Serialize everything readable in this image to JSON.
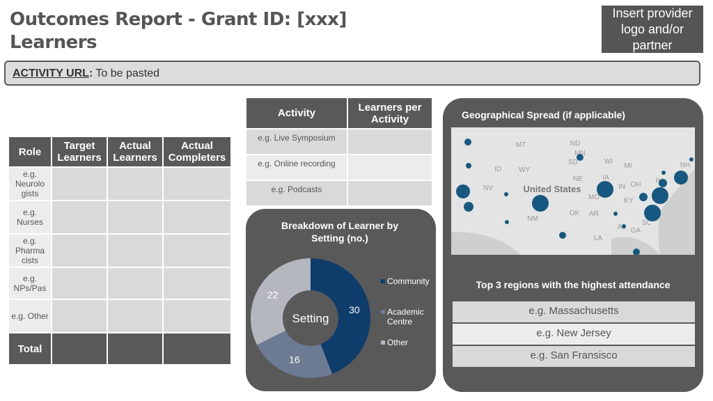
{
  "header": {
    "title_line1": "Outcomes Report - Grant ID: [xxx]",
    "title_line2": "Learners",
    "logo_placeholder": "Insert provider logo and/or partner"
  },
  "activity_url": {
    "label": "ACTIVITY URL",
    "colon": ":",
    "value": "To be pasted"
  },
  "role_table": {
    "headers": [
      "Role",
      "Target Learners",
      "Actual Learners",
      "Actual Completers"
    ],
    "rows": [
      [
        "e.g. Neurolo gists",
        "",
        "",
        ""
      ],
      [
        "e.g. Nurses",
        "",
        "",
        ""
      ],
      [
        "e.g. Pharma cists",
        "",
        "",
        ""
      ],
      [
        "e.g. NPs/Pas",
        "",
        "",
        ""
      ],
      [
        "e.g. Other",
        "",
        "",
        ""
      ],
      [
        "Total",
        "",
        "",
        ""
      ]
    ]
  },
  "activity_table": {
    "headers": [
      "Activity",
      "Learners per Activity"
    ],
    "rows": [
      [
        "e.g. Live Symposium",
        ""
      ],
      [
        "e.g. Online recording",
        ""
      ],
      [
        "e.g. Podcasts",
        ""
      ]
    ]
  },
  "chart_data": {
    "type": "pie",
    "title": "Breakdown of Learner by Setting (no.)",
    "center_label": "Setting",
    "categories": [
      "Community",
      "Academic Centre",
      "Other"
    ],
    "values": [
      30,
      16,
      22
    ],
    "colors": [
      "#0e3d6b",
      "#6d7a94",
      "#b4b7be"
    ],
    "legend_placement": "right"
  },
  "geo": {
    "title": "Geographical Spread (if applicable)",
    "country_label": "United States",
    "states": [
      "MT",
      "ND",
      "MN",
      "SD",
      "WY",
      "ID",
      "NE",
      "IA",
      "WI",
      "MI",
      "NV",
      "OH",
      "IN",
      "PA",
      "MO",
      "KY",
      "OK",
      "AR",
      "NM",
      "AL",
      "GA",
      "SC",
      "LA",
      "NH"
    ],
    "marker_color": "#16587f"
  },
  "regions": {
    "title": "Top 3 regions with the highest attendance",
    "items": [
      "e.g. Massachusetts",
      "e.g. New Jersey",
      "e.g. San Fransisco"
    ]
  }
}
